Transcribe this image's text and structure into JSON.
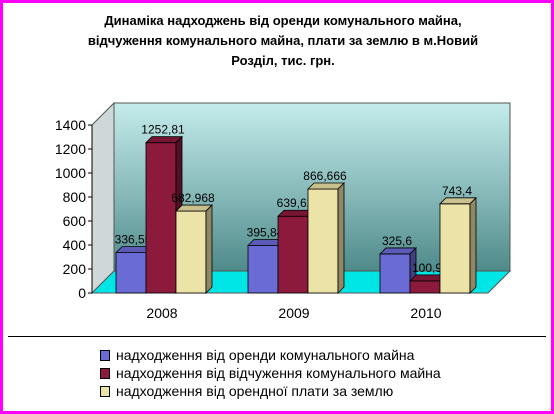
{
  "title": {
    "line1": "Динаміка надходжень від оренди комунального майна,",
    "line2": "відчуження комунального майна, плати за землю в м.Новий",
    "line3": "Розділ, тис. грн."
  },
  "colors": {
    "frame": "#ff00ff",
    "series": [
      "#6b6bd6",
      "#8b1a3c",
      "#ece3a6"
    ],
    "floor": "#00e6e6"
  },
  "chart_data": {
    "type": "bar",
    "categories": [
      "2008",
      "2009",
      "2010"
    ],
    "series": [
      {
        "name": "надходження від оренди комунального майна",
        "values": [
          336.55,
          395.84,
          325.6
        ],
        "labels": [
          "336,55",
          "395,84",
          "325,6"
        ]
      },
      {
        "name": "надходження від відчуження комунального майна",
        "values": [
          1252.81,
          639.62,
          100.9
        ],
        "labels": [
          "1252,81",
          "639,62",
          "100,9"
        ]
      },
      {
        "name": "надходження від орендної плати за землю",
        "values": [
          682.968,
          866.666,
          743.4
        ],
        "labels": [
          "682,968",
          "866,666",
          "743,4"
        ]
      }
    ],
    "yticks": [
      "0",
      "200",
      "400",
      "600",
      "800",
      "1000",
      "1200",
      "1400"
    ],
    "ylim": [
      0,
      1400
    ],
    "legend_position": "bottom",
    "grid": false,
    "three_d": true
  },
  "legend": {
    "items": [
      "надходження від оренди комунального майна",
      "надходження від відчуження комунального майна",
      "надходження від орендної плати за землю"
    ]
  }
}
